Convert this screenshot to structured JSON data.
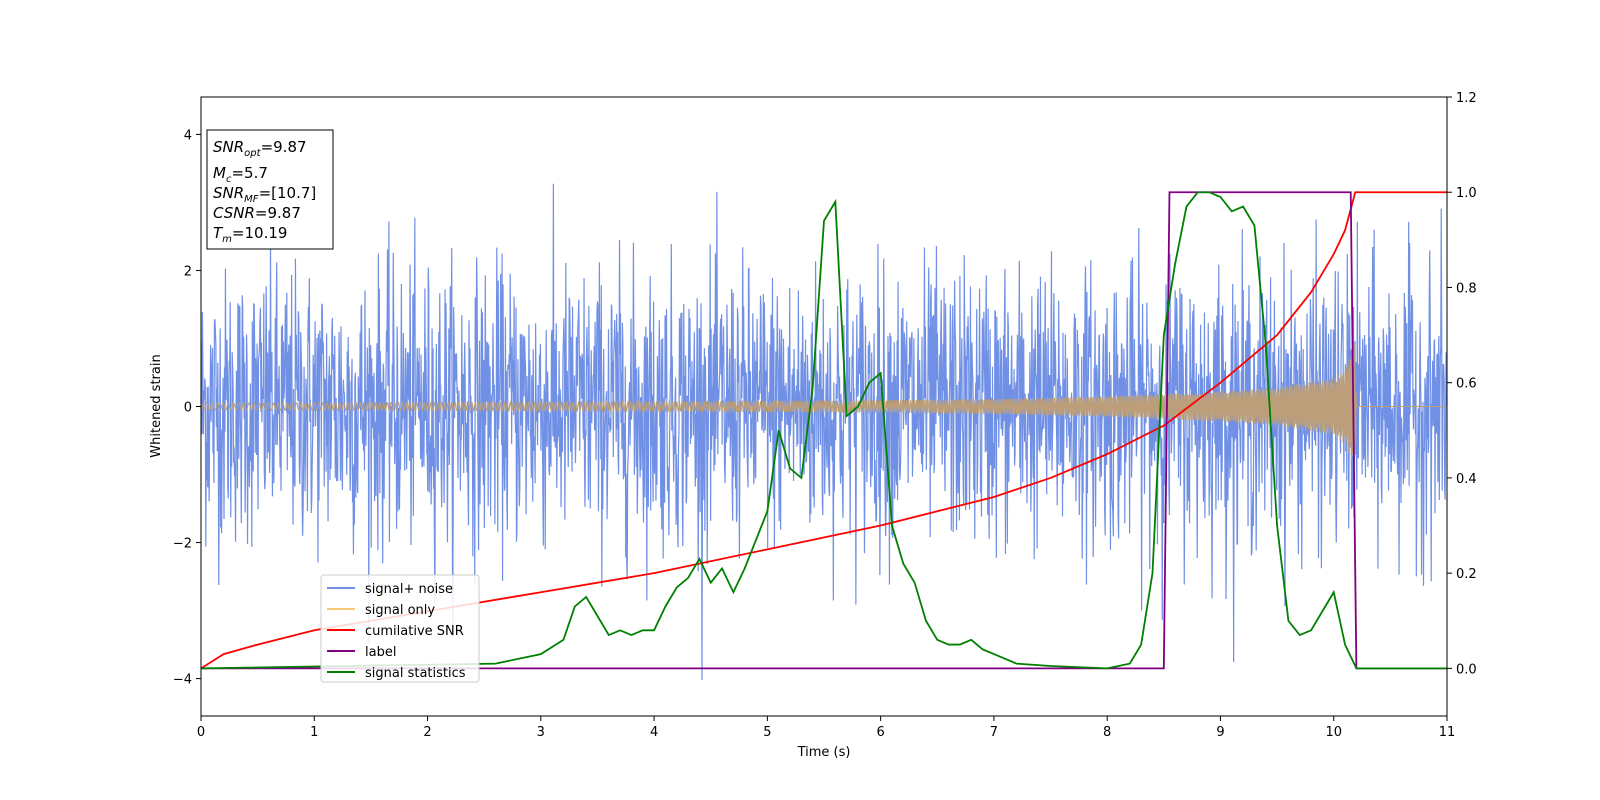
{
  "chart_data": {
    "type": "line",
    "xlabel": "Time (s)",
    "ylabel": "Whitened strain",
    "xlim": [
      0,
      11
    ],
    "ylim_left": [
      -4.55,
      4.55
    ],
    "ylim_right": [
      -0.1,
      1.2
    ],
    "x_ticks": [
      "0",
      "1",
      "2",
      "3",
      "4",
      "5",
      "6",
      "7",
      "8",
      "9",
      "10",
      "11"
    ],
    "y_left_ticks": [
      "−4",
      "−2",
      "0",
      "2",
      "4"
    ],
    "y_left_tick_values": [
      -4,
      -2,
      0,
      2,
      4
    ],
    "y_right_ticks": [
      "0.0",
      "0.2",
      "0.4",
      "0.6",
      "0.8",
      "1.0",
      "1.2"
    ],
    "y_right_tick_values": [
      0.0,
      0.2,
      0.4,
      0.6,
      0.8,
      1.0,
      1.2
    ],
    "legend_position": "lower-left",
    "colors": {
      "signal_noise": "#7090e6",
      "signal_only": "#f5c87a",
      "signal_only_overlap": "#bc9f7a",
      "cumulative_snr": "#ff0000",
      "label": "#800080",
      "signal_statistics": "#008000"
    },
    "annotation": {
      "snr_opt": "9.87",
      "mc": "5.7",
      "snr_mf": "[10.7]",
      "csnr": "9.87",
      "tm": "10.19"
    },
    "series": [
      {
        "name": "signal+ noise",
        "axis": "left",
        "description_values": "whitened noise, amplitude roughly ±2.5 with spikes to ±4",
        "noise_std": 1.0
      },
      {
        "name": "signal only",
        "axis": "left",
        "envelope_x": [
          0,
          2,
          4,
          6,
          7,
          8,
          9,
          9.5,
          10,
          10.1,
          10.19,
          10.2,
          11
        ],
        "envelope_y": [
          0.05,
          0.06,
          0.07,
          0.09,
          0.11,
          0.15,
          0.22,
          0.28,
          0.42,
          0.55,
          0.95,
          0.0,
          0.0
        ]
      },
      {
        "name": "cumilative SNR",
        "axis": "right",
        "x": [
          0,
          0.2,
          0.5,
          1,
          1.5,
          2,
          3,
          4,
          5,
          6,
          7,
          7.5,
          8,
          8.5,
          9,
          9.5,
          9.8,
          10,
          10.1,
          10.19,
          10.2,
          11
        ],
        "y": [
          0.0,
          0.03,
          0.05,
          0.08,
          0.1,
          0.12,
          0.16,
          0.2,
          0.25,
          0.3,
          0.36,
          0.4,
          0.45,
          0.51,
          0.6,
          0.7,
          0.79,
          0.87,
          0.92,
          1.0,
          1.0,
          1.0
        ]
      },
      {
        "name": "label",
        "axis": "right",
        "x": [
          0,
          8.5,
          8.55,
          10.15,
          10.2,
          11
        ],
        "y": [
          0,
          0,
          1,
          1,
          0,
          0
        ]
      },
      {
        "name": "signal statistics",
        "axis": "right",
        "x": [
          0,
          2.6,
          3.0,
          3.2,
          3.3,
          3.4,
          3.5,
          3.6,
          3.7,
          3.8,
          3.9,
          4.0,
          4.1,
          4.2,
          4.3,
          4.4,
          4.5,
          4.6,
          4.7,
          4.8,
          4.9,
          5.0,
          5.1,
          5.2,
          5.3,
          5.4,
          5.5,
          5.6,
          5.7,
          5.8,
          5.9,
          6.0,
          6.1,
          6.2,
          6.3,
          6.4,
          6.5,
          6.6,
          6.7,
          6.8,
          6.9,
          7.0,
          7.2,
          7.5,
          8.0,
          8.2,
          8.3,
          8.4,
          8.5,
          8.6,
          8.7,
          8.8,
          8.9,
          9.0,
          9.1,
          9.2,
          9.3,
          9.4,
          9.5,
          9.6,
          9.7,
          9.8,
          9.9,
          10.0,
          10.1,
          10.2,
          10.5,
          11
        ],
        "y": [
          0.0,
          0.01,
          0.03,
          0.06,
          0.13,
          0.15,
          0.11,
          0.07,
          0.08,
          0.07,
          0.08,
          0.08,
          0.13,
          0.17,
          0.19,
          0.23,
          0.18,
          0.21,
          0.16,
          0.21,
          0.27,
          0.33,
          0.5,
          0.42,
          0.4,
          0.59,
          0.94,
          0.98,
          0.53,
          0.55,
          0.6,
          0.62,
          0.3,
          0.22,
          0.18,
          0.1,
          0.06,
          0.05,
          0.05,
          0.06,
          0.04,
          0.03,
          0.01,
          0.005,
          0.0,
          0.01,
          0.05,
          0.2,
          0.7,
          0.85,
          0.97,
          1.0,
          1.0,
          0.99,
          0.96,
          0.97,
          0.93,
          0.68,
          0.3,
          0.1,
          0.07,
          0.08,
          0.12,
          0.16,
          0.05,
          0.0,
          0.0,
          0.0
        ]
      }
    ]
  }
}
